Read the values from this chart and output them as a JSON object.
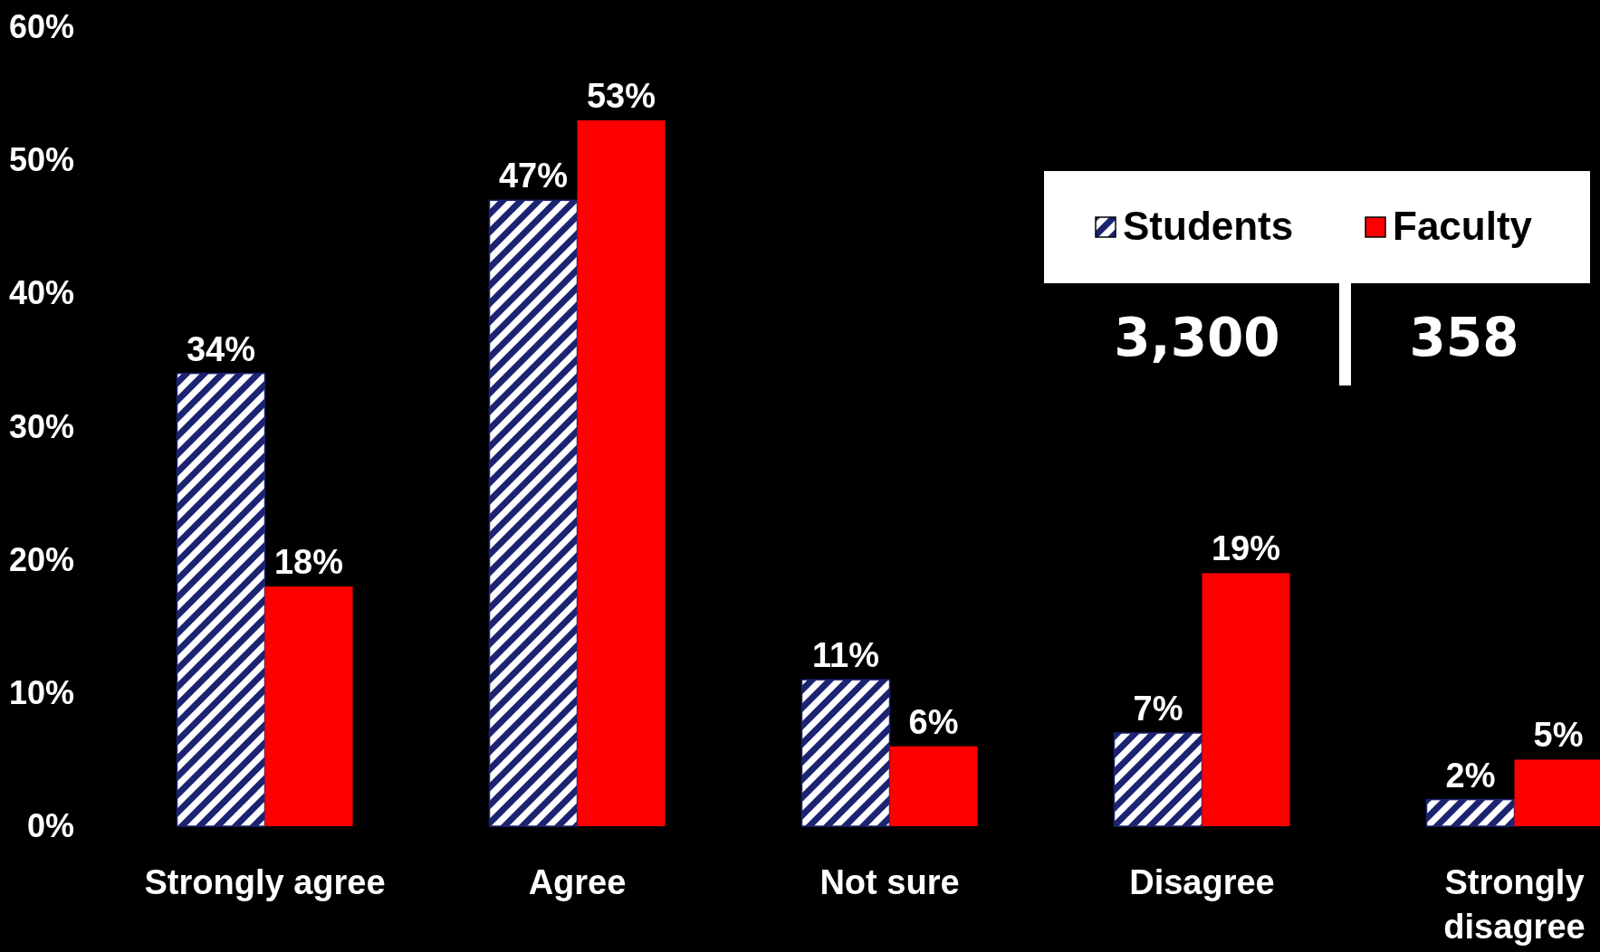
{
  "chart_data": {
    "type": "bar",
    "categories": [
      "Strongly agree",
      "Agree",
      "Not sure",
      "Disagree",
      "Strongly disagree"
    ],
    "series": [
      {
        "name": "Students",
        "color": "#1c2371",
        "values": [
          34,
          47,
          11,
          7,
          2
        ],
        "value_labels": [
          "34%",
          "47%",
          "11%",
          "7%",
          "2%"
        ]
      },
      {
        "name": "Faculty",
        "color": "#ff0000",
        "values": [
          18,
          53,
          6,
          19,
          5
        ],
        "value_labels": [
          "18%",
          "53%",
          "6%",
          "19%",
          "5%"
        ]
      }
    ],
    "ylim": [
      0,
      60
    ],
    "yticks": [
      {
        "value": 0,
        "label": "0%"
      },
      {
        "value": 10,
        "label": "10%"
      },
      {
        "value": 20,
        "label": "20%"
      },
      {
        "value": 30,
        "label": "30%"
      },
      {
        "value": 40,
        "label": "40%"
      },
      {
        "value": 50,
        "label": "50%"
      },
      {
        "value": 60,
        "label": "60%"
      }
    ],
    "legend": "top right",
    "grid": false,
    "annotations": [
      "3,300",
      "358"
    ]
  }
}
